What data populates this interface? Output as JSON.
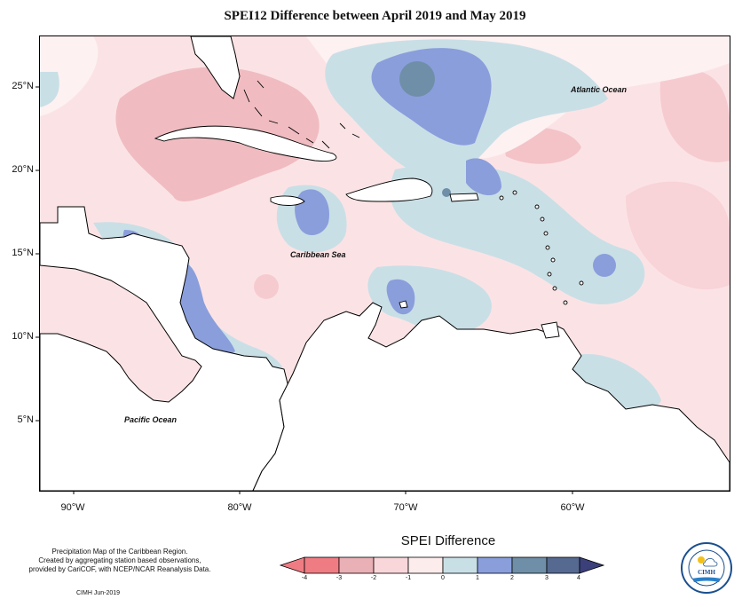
{
  "title": "SPEI12 Difference between April 2019 and May 2019",
  "latitude_labels": [
    "25°N",
    "20°N",
    "15°N",
    "10°N",
    "5°N"
  ],
  "longitude_labels": [
    "90°W",
    "80°W",
    "70°W",
    "60°W"
  ],
  "place_labels": {
    "atlantic": "Atlantic Ocean",
    "caribbean": "Caribbean Sea",
    "pacific": "Pacific Ocean"
  },
  "notes": {
    "line1": "Precipitation Map of the Caribbean Region.",
    "line2": "Created by aggregating station based observations,",
    "line3": "provided by CariCOF, with NCEP/NCAR Reanalysis Data.",
    "credit": "CIMH Jun-2019"
  },
  "legend": {
    "title": "SPEI Difference",
    "ticks": [
      "-4",
      "-3",
      "-2",
      "-1",
      "0",
      "1",
      "2",
      "3",
      "4"
    ],
    "colors": [
      "#f07c83",
      "#e9b0b5",
      "#f9d6da",
      "#fdecec",
      "#c9dfe6",
      "#8a9edc",
      "#6f8fa8",
      "#566990"
    ]
  },
  "logo": {
    "text": "CIMH"
  }
}
